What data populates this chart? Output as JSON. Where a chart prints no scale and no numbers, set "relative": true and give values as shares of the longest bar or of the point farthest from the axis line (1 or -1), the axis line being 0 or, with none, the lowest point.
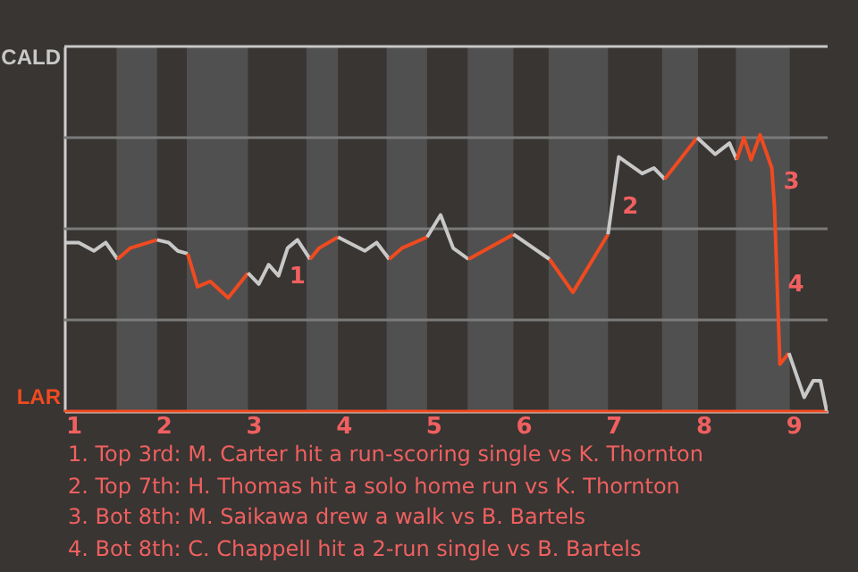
{
  "chart_data": {
    "type": "line",
    "relative": true,
    "series": [
      {
        "color": "#c8c8c8",
        "x": [
          0.92,
          1.06,
          1.23,
          1.36,
          1.49
        ],
        "values": [
          0.61,
          0.61,
          0.58,
          0.61,
          0.55
        ]
      },
      {
        "color": "#f04a20",
        "x": [
          1.49,
          1.63,
          1.93
        ],
        "values": [
          0.55,
          0.59,
          0.62
        ]
      },
      {
        "color": "#c8c8c8",
        "x": [
          1.93,
          2.06,
          2.16,
          2.27
        ],
        "values": [
          0.62,
          0.61,
          0.58,
          0.57
        ]
      },
      {
        "color": "#f04a20",
        "x": [
          2.27,
          2.38,
          2.52,
          2.72,
          2.94
        ],
        "values": [
          0.57,
          0.45,
          0.47,
          0.41,
          0.5
        ]
      },
      {
        "color": "#c8c8c8",
        "x": [
          2.94,
          3.06,
          3.17,
          3.28,
          3.38,
          3.49,
          3.63
        ],
        "values": [
          0.5,
          0.46,
          0.53,
          0.49,
          0.59,
          0.62,
          0.55
        ]
      },
      {
        "color": "#f04a20",
        "x": [
          3.63,
          3.73,
          3.94
        ],
        "values": [
          0.55,
          0.59,
          0.63
        ]
      },
      {
        "color": "#c8c8c8",
        "x": [
          3.94,
          4.06,
          4.24,
          4.37,
          4.51
        ],
        "values": [
          0.63,
          0.61,
          0.58,
          0.61,
          0.55
        ]
      },
      {
        "color": "#f04a20",
        "x": [
          4.51,
          4.65,
          4.93
        ],
        "values": [
          0.55,
          0.59,
          0.63
        ]
      },
      {
        "color": "#c8c8c8",
        "x": [
          4.93,
          5.08,
          5.22,
          5.39
        ],
        "values": [
          0.63,
          0.71,
          0.59,
          0.55
        ]
      },
      {
        "color": "#f04a20",
        "x": [
          5.39,
          5.89
        ],
        "values": [
          0.55,
          0.64
        ]
      },
      {
        "color": "#c8c8c8",
        "x": [
          5.89,
          6.29
        ],
        "values": [
          0.64,
          0.55
        ]
      },
      {
        "color": "#f04a20",
        "x": [
          6.29,
          6.55,
          6.94
        ],
        "values": [
          0.55,
          0.43,
          0.64
        ]
      },
      {
        "color": "#c8c8c8",
        "x": [
          6.94,
          7.06,
          7.32,
          7.45,
          7.57
        ],
        "values": [
          0.64,
          0.92,
          0.86,
          0.88,
          0.84
        ]
      },
      {
        "color": "#f04a20",
        "x": [
          7.57,
          7.93
        ],
        "values": [
          0.84,
          0.99
        ]
      },
      {
        "color": "#c8c8c8",
        "x": [
          7.93,
          8.13,
          8.29,
          8.37
        ],
        "values": [
          0.99,
          0.93,
          0.97,
          0.91
        ]
      },
      {
        "color": "#f04a20",
        "x": [
          8.37,
          8.45,
          8.53,
          8.63,
          8.76,
          8.79,
          8.85,
          8.95
        ],
        "values": [
          0.91,
          0.99,
          0.91,
          1,
          0.88,
          0.74,
          0.17,
          0.21
        ]
      },
      {
        "color": "#c8c8c8",
        "x": [
          8.95,
          9.12,
          9.22,
          9.3,
          9.37
        ],
        "values": [
          0.21,
          0.05,
          0.11,
          0.11,
          0
        ]
      }
    ],
    "xlim": [
      0.9,
      9.38
    ],
    "xticks": [
      1,
      2,
      3,
      4,
      5,
      6,
      7,
      8,
      9
    ],
    "line_style": "solid",
    "ref_lines": [
      {
        "axis": "y",
        "value": 0,
        "label": "LAR",
        "color": "#f04a20"
      },
      {
        "axis": "y",
        "value": 0.33,
        "label": null,
        "color": "#7a7a7a"
      },
      {
        "axis": "y",
        "value": 0.66,
        "label": null,
        "color": "#7a7a7a"
      },
      {
        "axis": "y",
        "value": 0.99,
        "label": null,
        "color": "#7a7a7a"
      },
      {
        "axis": "y",
        "value": 1.32,
        "label": "CALD",
        "color": "#c8c8c8"
      }
    ],
    "bands": [
      {
        "axis": "x",
        "from": 1.48,
        "to": 1.93,
        "color": "#505050"
      },
      {
        "axis": "x",
        "from": 2.26,
        "to": 2.94,
        "color": "#505050"
      },
      {
        "axis": "x",
        "from": 3.59,
        "to": 3.94,
        "color": "#505050"
      },
      {
        "axis": "x",
        "from": 4.48,
        "to": 4.93,
        "color": "#505050"
      },
      {
        "axis": "x",
        "from": 5.38,
        "to": 5.89,
        "color": "#505050"
      },
      {
        "axis": "x",
        "from": 6.28,
        "to": 6.94,
        "color": "#505050"
      },
      {
        "axis": "x",
        "from": 7.54,
        "to": 7.94,
        "color": "#505050"
      },
      {
        "axis": "x",
        "from": 8.36,
        "to": 8.96,
        "color": "#505050"
      }
    ],
    "annotations": [
      {
        "text": "1",
        "x": 3.28,
        "y": 0.49
      },
      {
        "text": "2",
        "x": 6.98,
        "y": 0.74
      },
      {
        "text": "3",
        "x": 8.77,
        "y": 0.83
      },
      {
        "text": "4",
        "x": 8.82,
        "y": 0.46
      },
      "1. Top 3rd: M. Carter hit a run-scoring single vs K. Thornton",
      "2. Top 7th: H. Thomas hit a solo home run vs K. Thornton",
      "3. Bot 8th: M. Saikawa drew a walk vs B. Bartels",
      "4. Bot 8th: C. Chappell hit a 2-run single vs B. Bartels"
    ]
  }
}
